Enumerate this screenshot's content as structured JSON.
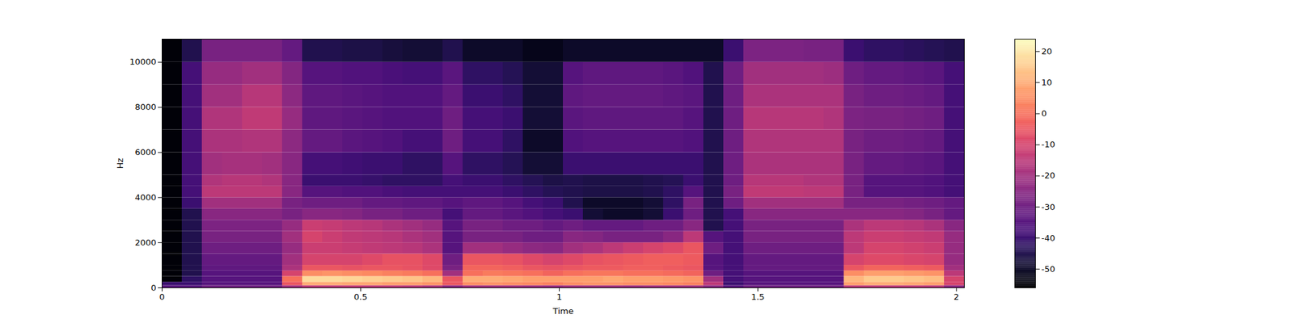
{
  "chart_data": {
    "type": "spectrogram",
    "xlabel": "Time",
    "ylabel": "Hz",
    "color": "magma",
    "xlim": [
      0,
      2.02
    ],
    "xticks": [
      0,
      0.5,
      1,
      1.5,
      2
    ],
    "ylim": [
      0,
      11025
    ],
    "yticks": [
      0,
      2000,
      4000,
      6000,
      8000,
      10000
    ],
    "x_edges": [
      0,
      0.0505,
      0.101,
      0.1515,
      0.202,
      0.2525,
      0.303,
      0.3535,
      0.404,
      0.4545,
      0.505,
      0.5555,
      0.606,
      0.6565,
      0.707,
      0.7575,
      0.808,
      0.8585,
      0.909,
      0.9595,
      1.01,
      1.0605,
      1.111,
      1.1615,
      1.212,
      1.2625,
      1.313,
      1.3635,
      1.414,
      1.4645,
      1.515,
      1.5655,
      1.616,
      1.6665,
      1.717,
      1.7675,
      1.818,
      1.8685,
      1.919,
      1.9695,
      2.02
    ],
    "y_edges": [
      0,
      100,
      250,
      500,
      750,
      1000,
      1500,
      2000,
      2500,
      3000,
      3500,
      4000,
      4500,
      5000,
      6000,
      7000,
      8000,
      9000,
      10000,
      11025
    ],
    "values": [
      [
        -35,
        -35,
        -30,
        -30,
        -30,
        -30,
        -20,
        -15,
        -15,
        -14,
        -15,
        -15,
        -16,
        -18,
        -25,
        -20,
        -20,
        -20,
        -21,
        -22,
        -20,
        -20,
        -20,
        -21,
        -20,
        -20,
        -20,
        -25,
        -35,
        -30,
        -30,
        -30,
        -30,
        -30,
        -15,
        -15,
        -15,
        -15,
        -16,
        -25
      ],
      [
        -40,
        -40,
        -35,
        -35,
        -35,
        -35,
        -5,
        10,
        10,
        9,
        9,
        8,
        8,
        6,
        -5,
        5,
        6,
        5,
        4,
        3,
        5,
        6,
        6,
        5,
        5,
        4,
        3,
        -15,
        -40,
        -35,
        -35,
        -35,
        -35,
        -35,
        8,
        10,
        10,
        9,
        8,
        -10
      ],
      [
        -55,
        -42,
        -35,
        -35,
        -35,
        -35,
        0,
        18,
        18,
        17,
        16,
        15,
        14,
        12,
        -5,
        10,
        10,
        9,
        8,
        8,
        8,
        8,
        9,
        8,
        8,
        7,
        6,
        -20,
        -38,
        -35,
        -35,
        -35,
        -35,
        -35,
        12,
        15,
        15,
        14,
        13,
        -10
      ],
      [
        -55,
        -45,
        -35,
        -35,
        -35,
        -35,
        -10,
        5,
        6,
        5,
        4,
        3,
        2,
        0,
        -20,
        0,
        2,
        1,
        0,
        -2,
        0,
        1,
        1,
        0,
        0,
        -1,
        -2,
        -30,
        -38,
        -35,
        -35,
        -35,
        -35,
        -35,
        5,
        8,
        8,
        7,
        6,
        -15
      ],
      [
        -55,
        -45,
        -33,
        -33,
        -33,
        -33,
        -18,
        -5,
        -5,
        -6,
        -5,
        -5,
        -6,
        -8,
        -28,
        -2,
        -2,
        -3,
        -5,
        -6,
        -5,
        -4,
        -4,
        -3,
        -3,
        -4,
        -5,
        -35,
        -38,
        -32,
        -32,
        -32,
        -32,
        -32,
        -5,
        -2,
        -2,
        -3,
        -4,
        -20
      ],
      [
        -55,
        -45,
        -32,
        -32,
        -32,
        -32,
        -20,
        -10,
        -10,
        -10,
        -8,
        -6,
        -6,
        -8,
        -30,
        -5,
        -5,
        -6,
        -8,
        -10,
        -8,
        -6,
        -5,
        -4,
        -3,
        -3,
        -4,
        -35,
        -38,
        -32,
        -32,
        -32,
        -32,
        -32,
        -10,
        -8,
        -8,
        -9,
        -10,
        -22
      ],
      [
        -55,
        -45,
        -30,
        -30,
        -30,
        -30,
        -22,
        -12,
        -12,
        -13,
        -14,
        -15,
        -16,
        -18,
        -35,
        -20,
        -20,
        -22,
        -24,
        -25,
        -20,
        -18,
        -15,
        -12,
        -10,
        -8,
        -5,
        -30,
        -38,
        -30,
        -30,
        -30,
        -30,
        -30,
        -15,
        -10,
        -10,
        -11,
        -12,
        -22
      ],
      [
        -55,
        -45,
        -28,
        -28,
        -28,
        -28,
        -20,
        -10,
        -12,
        -14,
        -15,
        -16,
        -18,
        -20,
        -35,
        -28,
        -28,
        -28,
        -30,
        -30,
        -25,
        -26,
        -28,
        -28,
        -28,
        -25,
        -15,
        -35,
        -38,
        -28,
        -28,
        -28,
        -28,
        -28,
        -15,
        -12,
        -12,
        -13,
        -14,
        -22
      ],
      [
        -55,
        -45,
        -27,
        -27,
        -27,
        -27,
        -22,
        -12,
        -13,
        -15,
        -16,
        -18,
        -20,
        -22,
        -35,
        -28,
        -28,
        -30,
        -30,
        -32,
        -30,
        -32,
        -32,
        -32,
        -30,
        -30,
        -25,
        -45,
        -38,
        -28,
        -28,
        -28,
        -28,
        -28,
        -18,
        -15,
        -15,
        -16,
        -18,
        -25
      ],
      [
        -55,
        -45,
        -25,
        -25,
        -25,
        -25,
        -28,
        -25,
        -25,
        -26,
        -28,
        -28,
        -30,
        -30,
        -38,
        -32,
        -32,
        -34,
        -36,
        -38,
        -40,
        -48,
        -50,
        -50,
        -48,
        -40,
        -30,
        -45,
        -38,
        -25,
        -25,
        -25,
        -25,
        -25,
        -25,
        -25,
        -25,
        -26,
        -28,
        -32
      ],
      [
        -55,
        -40,
        -20,
        -20,
        -20,
        -20,
        -28,
        -30,
        -30,
        -30,
        -32,
        -32,
        -33,
        -33,
        -35,
        -33,
        -33,
        -35,
        -38,
        -40,
        -45,
        -50,
        -50,
        -50,
        -48,
        -42,
        -28,
        -45,
        -30,
        -20,
        -20,
        -20,
        -20,
        -20,
        -28,
        -28,
        -28,
        -29,
        -30,
        -32
      ],
      [
        -55,
        -38,
        -15,
        -15,
        -15,
        -15,
        -25,
        -35,
        -35,
        -36,
        -36,
        -37,
        -38,
        -38,
        -38,
        -38,
        -38,
        -40,
        -42,
        -44,
        -45,
        -46,
        -46,
        -46,
        -45,
        -42,
        -35,
        -45,
        -28,
        -14,
        -14,
        -14,
        -15,
        -15,
        -28,
        -35,
        -35,
        -35,
        -36,
        -38
      ],
      [
        -55,
        -38,
        -17,
        -16,
        -16,
        -17,
        -25,
        -40,
        -40,
        -40,
        -41,
        -42,
        -42,
        -42,
        -38,
        -40,
        -40,
        -42,
        -44,
        -46,
        -45,
        -46,
        -46,
        -46,
        -45,
        -44,
        -40,
        -45,
        -30,
        -16,
        -16,
        -16,
        -17,
        -17,
        -28,
        -35,
        -35,
        -35,
        -36,
        -38
      ],
      [
        -55,
        -38,
        -20,
        -19,
        -19,
        -20,
        -25,
        -38,
        -38,
        -39,
        -40,
        -40,
        -42,
        -42,
        -35,
        -42,
        -42,
        -44,
        -48,
        -48,
        -40,
        -40,
        -40,
        -40,
        -40,
        -40,
        -40,
        -45,
        -30,
        -18,
        -18,
        -18,
        -18,
        -18,
        -28,
        -32,
        -32,
        -33,
        -34,
        -38
      ],
      [
        -55,
        -38,
        -18,
        -18,
        -17,
        -17,
        -24,
        -32,
        -32,
        -34,
        -35,
        -36,
        -38,
        -38,
        -30,
        -38,
        -38,
        -42,
        -50,
        -50,
        -36,
        -35,
        -35,
        -35,
        -35,
        -35,
        -36,
        -45,
        -30,
        -17,
        -17,
        -17,
        -17,
        -17,
        -28,
        -30,
        -30,
        -31,
        -32,
        -38
      ],
      [
        -55,
        -38,
        -17,
        -17,
        -14,
        -14,
        -22,
        -33,
        -33,
        -34,
        -35,
        -36,
        -36,
        -36,
        -30,
        -38,
        -38,
        -40,
        -48,
        -48,
        -34,
        -33,
        -33,
        -33,
        -33,
        -33,
        -35,
        -45,
        -30,
        -16,
        -16,
        -16,
        -16,
        -17,
        -27,
        -28,
        -28,
        -29,
        -30,
        -38
      ],
      [
        -55,
        -38,
        -20,
        -20,
        -16,
        -16,
        -24,
        -33,
        -33,
        -34,
        -35,
        -36,
        -36,
        -36,
        -32,
        -40,
        -40,
        -42,
        -48,
        -48,
        -33,
        -32,
        -32,
        -32,
        -32,
        -33,
        -34,
        -45,
        -30,
        -18,
        -18,
        -18,
        -18,
        -18,
        -28,
        -30,
        -30,
        -31,
        -32,
        -38
      ],
      [
        -55,
        -38,
        -22,
        -22,
        -20,
        -20,
        -26,
        -35,
        -35,
        -36,
        -36,
        -37,
        -38,
        -38,
        -34,
        -42,
        -42,
        -44,
        -48,
        -48,
        -35,
        -33,
        -33,
        -33,
        -33,
        -34,
        -36,
        -45,
        -30,
        -20,
        -20,
        -20,
        -20,
        -21,
        -30,
        -32,
        -32,
        -33,
        -34,
        -38
      ],
      [
        -55,
        -45,
        -28,
        -28,
        -28,
        -28,
        -32,
        -45,
        -45,
        -46,
        -46,
        -47,
        -48,
        -48,
        -45,
        -50,
        -50,
        -50,
        -52,
        -52,
        -50,
        -50,
        -50,
        -50,
        -50,
        -50,
        -50,
        -50,
        -40,
        -27,
        -27,
        -27,
        -28,
        -28,
        -40,
        -42,
        -42,
        -43,
        -44,
        -45
      ]
    ],
    "colorbar": {
      "range": [
        -56,
        24
      ],
      "ticks": [
        -50,
        -40,
        -30,
        -20,
        -10,
        0,
        10,
        20
      ]
    }
  }
}
